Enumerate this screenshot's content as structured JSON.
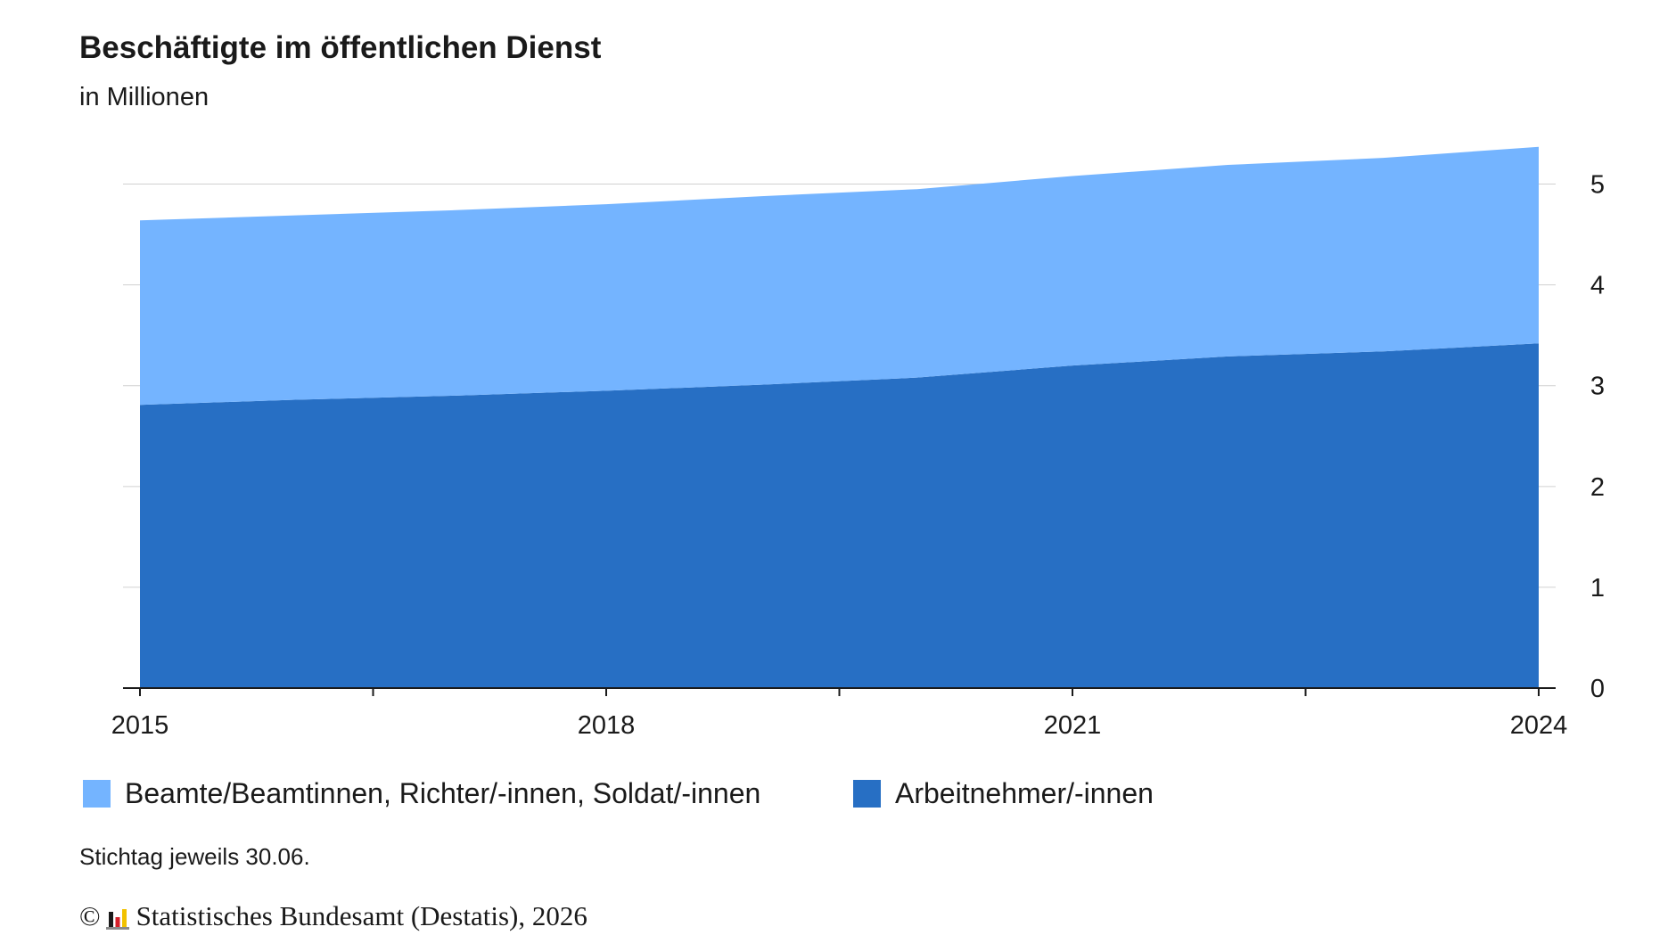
{
  "title": "Beschäftigte im öffentlichen Dienst",
  "subtitle": "in Millionen",
  "note": "Stichtag jeweils 30.06.",
  "footer": {
    "copyright_symbol": "©",
    "source": "Statistisches Bundesamt (Destatis), 2026"
  },
  "colors": {
    "series_beamte": "#74b4ff",
    "series_arbeitnehmer": "#276fc4",
    "axis": "#1a1a1a",
    "grid": "#d0d0d0"
  },
  "chart_data": {
    "type": "area",
    "stacked": true,
    "title": "Beschäftigte im öffentlichen Dienst",
    "subtitle": "in Millionen",
    "x": [
      2015,
      2016,
      2017,
      2018,
      2019,
      2020,
      2021,
      2022,
      2023,
      2024
    ],
    "x_tick_labels": [
      "2015",
      "2018",
      "2021",
      "2024"
    ],
    "y_ticks": [
      0,
      1,
      2,
      3,
      4,
      5
    ],
    "ylim": [
      0,
      5.5
    ],
    "y_axis_position": "right",
    "grid": true,
    "legend_position": "bottom",
    "series": [
      {
        "name": "Arbeitnehmer/-innen",
        "color": "#276fc4",
        "values": [
          2.81,
          2.86,
          2.9,
          2.95,
          3.01,
          3.08,
          3.2,
          3.29,
          3.34,
          3.42
        ]
      },
      {
        "name": "Beamte/Beamtinnen, Richter/-innen, Soldat/-innen",
        "color": "#74b4ff",
        "values": [
          1.83,
          1.83,
          1.84,
          1.85,
          1.87,
          1.87,
          1.88,
          1.9,
          1.92,
          1.95
        ]
      }
    ],
    "legend": [
      {
        "label": "Beamte/Beamtinnen, Richter/-innen, Soldat/-innen",
        "color": "#74b4ff"
      },
      {
        "label": "Arbeitnehmer/-innen",
        "color": "#276fc4"
      }
    ]
  }
}
